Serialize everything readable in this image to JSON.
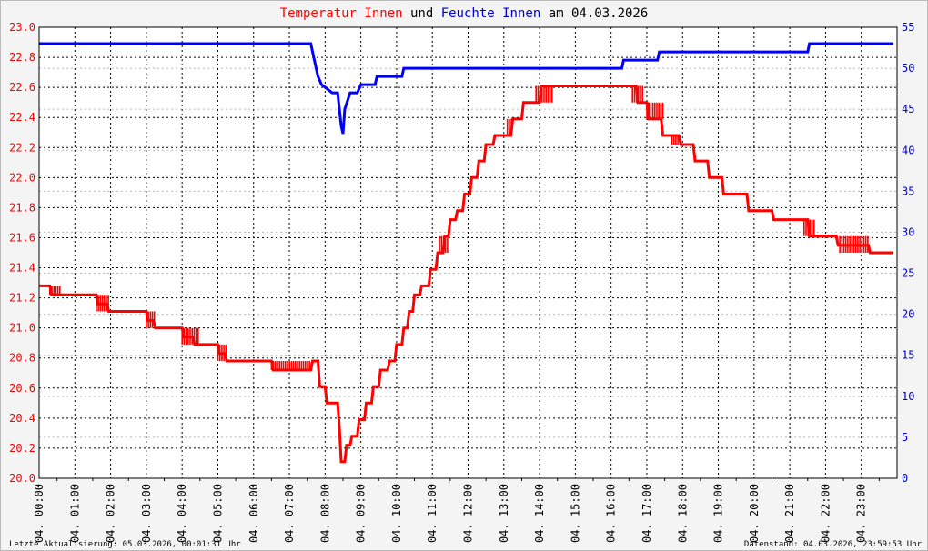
{
  "chart_data": {
    "type": "line",
    "title_parts": [
      {
        "text": "Temperatur Innen",
        "color": "#ff0000"
      },
      {
        "text": " und ",
        "color": "#000000"
      },
      {
        "text": "Feuchte Innen",
        "color": "#0000cc"
      },
      {
        "text": " am 04.03.2026",
        "color": "#000000"
      }
    ],
    "x_range": [
      0,
      24
    ],
    "x_tick_labels": [
      "04. 00:00",
      "04. 01:00",
      "04. 02:00",
      "04. 03:00",
      "04. 04:00",
      "04. 05:00",
      "04. 06:00",
      "04. 07:00",
      "04. 08:00",
      "04. 09:00",
      "04. 10:00",
      "04. 11:00",
      "04. 12:00",
      "04. 13:00",
      "04. 14:00",
      "04. 15:00",
      "04. 16:00",
      "04. 17:00",
      "04. 18:00",
      "04. 19:00",
      "04. 20:00",
      "04. 21:00",
      "04. 22:00",
      "04. 23:00"
    ],
    "y_left": {
      "min": 20.0,
      "max": 23.0,
      "ticks": [
        "20.0",
        "20.2",
        "20.4",
        "20.6",
        "20.8",
        "21.0",
        "21.2",
        "21.4",
        "21.6",
        "21.8",
        "22.0",
        "22.2",
        "22.4",
        "22.6",
        "22.8",
        "23.0"
      ],
      "color": "#ff0000"
    },
    "y_right": {
      "min": 0,
      "max": 55,
      "ticks": [
        "0",
        "5",
        "10",
        "15",
        "20",
        "25",
        "30",
        "35",
        "40",
        "45",
        "50",
        "55"
      ],
      "color": "#0000cc"
    },
    "grid": true,
    "series": [
      {
        "name": "Temperatur Innen",
        "axis": "left",
        "color": "#ff0000",
        "points": [
          [
            0,
            21.28
          ],
          [
            0.3,
            21.28
          ],
          [
            0.35,
            21.22
          ],
          [
            0.6,
            21.22
          ],
          [
            1.6,
            21.22
          ],
          [
            1.65,
            21.16
          ],
          [
            1.9,
            21.16
          ],
          [
            1.95,
            21.11
          ],
          [
            3.0,
            21.11
          ],
          [
            3.05,
            21.05
          ],
          [
            3.2,
            21.05
          ],
          [
            3.25,
            21.0
          ],
          [
            4.0,
            21.0
          ],
          [
            4.05,
            20.94
          ],
          [
            4.3,
            20.94
          ],
          [
            4.35,
            20.89
          ],
          [
            4.5,
            20.89
          ],
          [
            5.0,
            20.89
          ],
          [
            5.05,
            20.83
          ],
          [
            5.2,
            20.83
          ],
          [
            5.25,
            20.78
          ],
          [
            6.5,
            20.78
          ],
          [
            6.55,
            20.72
          ],
          [
            7.0,
            20.72
          ],
          [
            7.6,
            20.72
          ],
          [
            7.65,
            20.78
          ],
          [
            7.8,
            20.78
          ],
          [
            7.85,
            20.61
          ],
          [
            8.0,
            20.61
          ],
          [
            8.05,
            20.5
          ],
          [
            8.35,
            20.5
          ],
          [
            8.4,
            20.33
          ],
          [
            8.45,
            20.11
          ],
          [
            8.55,
            20.11
          ],
          [
            8.6,
            20.22
          ],
          [
            8.7,
            20.22
          ],
          [
            8.75,
            20.28
          ],
          [
            8.9,
            20.28
          ],
          [
            8.95,
            20.39
          ],
          [
            9.1,
            20.39
          ],
          [
            9.15,
            20.5
          ],
          [
            9.3,
            20.5
          ],
          [
            9.35,
            20.61
          ],
          [
            9.5,
            20.61
          ],
          [
            9.55,
            20.72
          ],
          [
            9.75,
            20.72
          ],
          [
            9.8,
            20.78
          ],
          [
            9.95,
            20.78
          ],
          [
            10.0,
            20.89
          ],
          [
            10.15,
            20.89
          ],
          [
            10.2,
            21.0
          ],
          [
            10.3,
            21.0
          ],
          [
            10.35,
            21.11
          ],
          [
            10.45,
            21.11
          ],
          [
            10.5,
            21.22
          ],
          [
            10.65,
            21.22
          ],
          [
            10.7,
            21.28
          ],
          [
            10.9,
            21.28
          ],
          [
            10.95,
            21.39
          ],
          [
            11.1,
            21.39
          ],
          [
            11.15,
            21.5
          ],
          [
            11.3,
            21.5
          ],
          [
            11.35,
            21.61
          ],
          [
            11.45,
            21.61
          ],
          [
            11.5,
            21.72
          ],
          [
            11.65,
            21.72
          ],
          [
            11.7,
            21.78
          ],
          [
            11.85,
            21.78
          ],
          [
            11.9,
            21.89
          ],
          [
            12.05,
            21.89
          ],
          [
            12.1,
            22.0
          ],
          [
            12.25,
            22.0
          ],
          [
            12.3,
            22.11
          ],
          [
            12.45,
            22.11
          ],
          [
            12.5,
            22.22
          ],
          [
            12.7,
            22.22
          ],
          [
            12.75,
            22.28
          ],
          [
            13.2,
            22.28
          ],
          [
            13.25,
            22.39
          ],
          [
            13.5,
            22.39
          ],
          [
            13.55,
            22.5
          ],
          [
            14.0,
            22.5
          ],
          [
            14.05,
            22.61
          ],
          [
            16.7,
            22.61
          ],
          [
            16.75,
            22.5
          ],
          [
            17.0,
            22.5
          ],
          [
            17.05,
            22.39
          ],
          [
            17.4,
            22.39
          ],
          [
            17.45,
            22.28
          ],
          [
            17.9,
            22.28
          ],
          [
            17.95,
            22.22
          ],
          [
            18.3,
            22.22
          ],
          [
            18.35,
            22.11
          ],
          [
            18.7,
            22.11
          ],
          [
            18.75,
            22.0
          ],
          [
            19.1,
            22.0
          ],
          [
            19.15,
            21.89
          ],
          [
            19.8,
            21.89
          ],
          [
            19.85,
            21.78
          ],
          [
            20.5,
            21.78
          ],
          [
            20.55,
            21.72
          ],
          [
            21.5,
            21.72
          ],
          [
            21.55,
            21.61
          ],
          [
            22.3,
            21.61
          ],
          [
            22.35,
            21.55
          ],
          [
            22.5,
            21.55
          ],
          [
            23.2,
            21.55
          ],
          [
            23.25,
            21.5
          ],
          [
            23.9,
            21.5
          ]
        ]
      },
      {
        "name": "Feuchte Innen",
        "axis": "right",
        "color": "#0000ff",
        "points": [
          [
            0,
            53
          ],
          [
            7.6,
            53
          ],
          [
            7.7,
            51
          ],
          [
            7.8,
            49
          ],
          [
            7.9,
            48
          ],
          [
            8.2,
            47
          ],
          [
            8.35,
            47
          ],
          [
            8.45,
            43
          ],
          [
            8.5,
            42
          ],
          [
            8.55,
            45
          ],
          [
            8.7,
            47
          ],
          [
            8.9,
            47
          ],
          [
            9.0,
            48
          ],
          [
            9.4,
            48
          ],
          [
            9.45,
            49
          ],
          [
            10.15,
            49
          ],
          [
            10.2,
            50
          ],
          [
            16.3,
            50
          ],
          [
            16.35,
            51
          ],
          [
            17.3,
            51
          ],
          [
            17.35,
            52
          ],
          [
            21.5,
            52
          ],
          [
            21.55,
            53
          ],
          [
            23.9,
            53
          ]
        ]
      }
    ],
    "noise": [
      {
        "series": 0,
        "x0": 0.3,
        "x1": 0.6,
        "y": [
          21.22,
          21.28
        ]
      },
      {
        "series": 0,
        "x0": 1.6,
        "x1": 1.95,
        "y": [
          21.11,
          21.22
        ]
      },
      {
        "series": 0,
        "x0": 3.0,
        "x1": 3.25,
        "y": [
          21.0,
          21.11
        ]
      },
      {
        "series": 0,
        "x0": 4.0,
        "x1": 4.5,
        "y": [
          20.89,
          21.0
        ]
      },
      {
        "series": 0,
        "x0": 5.0,
        "x1": 5.25,
        "y": [
          20.78,
          20.89
        ]
      },
      {
        "series": 0,
        "x0": 6.5,
        "x1": 7.6,
        "y": [
          20.72,
          20.78
        ]
      },
      {
        "series": 0,
        "x0": 11.2,
        "x1": 11.45,
        "y": [
          21.5,
          21.61
        ]
      },
      {
        "series": 0,
        "x0": 13.1,
        "x1": 13.25,
        "y": [
          22.28,
          22.39
        ]
      },
      {
        "series": 0,
        "x0": 13.9,
        "x1": 14.4,
        "y": [
          22.5,
          22.61
        ]
      },
      {
        "series": 0,
        "x0": 16.6,
        "x1": 16.9,
        "y": [
          22.5,
          22.61
        ]
      },
      {
        "series": 0,
        "x0": 17.0,
        "x1": 17.5,
        "y": [
          22.39,
          22.5
        ]
      },
      {
        "series": 0,
        "x0": 17.7,
        "x1": 17.95,
        "y": [
          22.22,
          22.28
        ]
      },
      {
        "series": 0,
        "x0": 21.4,
        "x1": 21.7,
        "y": [
          21.61,
          21.72
        ]
      },
      {
        "series": 0,
        "x0": 22.4,
        "x1": 23.2,
        "y": [
          21.5,
          21.61
        ]
      }
    ],
    "footer_left": "Letzte Aktualisierung: 05.03.2026, 00:01:31 Uhr",
    "footer_right": "Datenstand: 04.03.2026, 23:59:53 Uhr"
  }
}
